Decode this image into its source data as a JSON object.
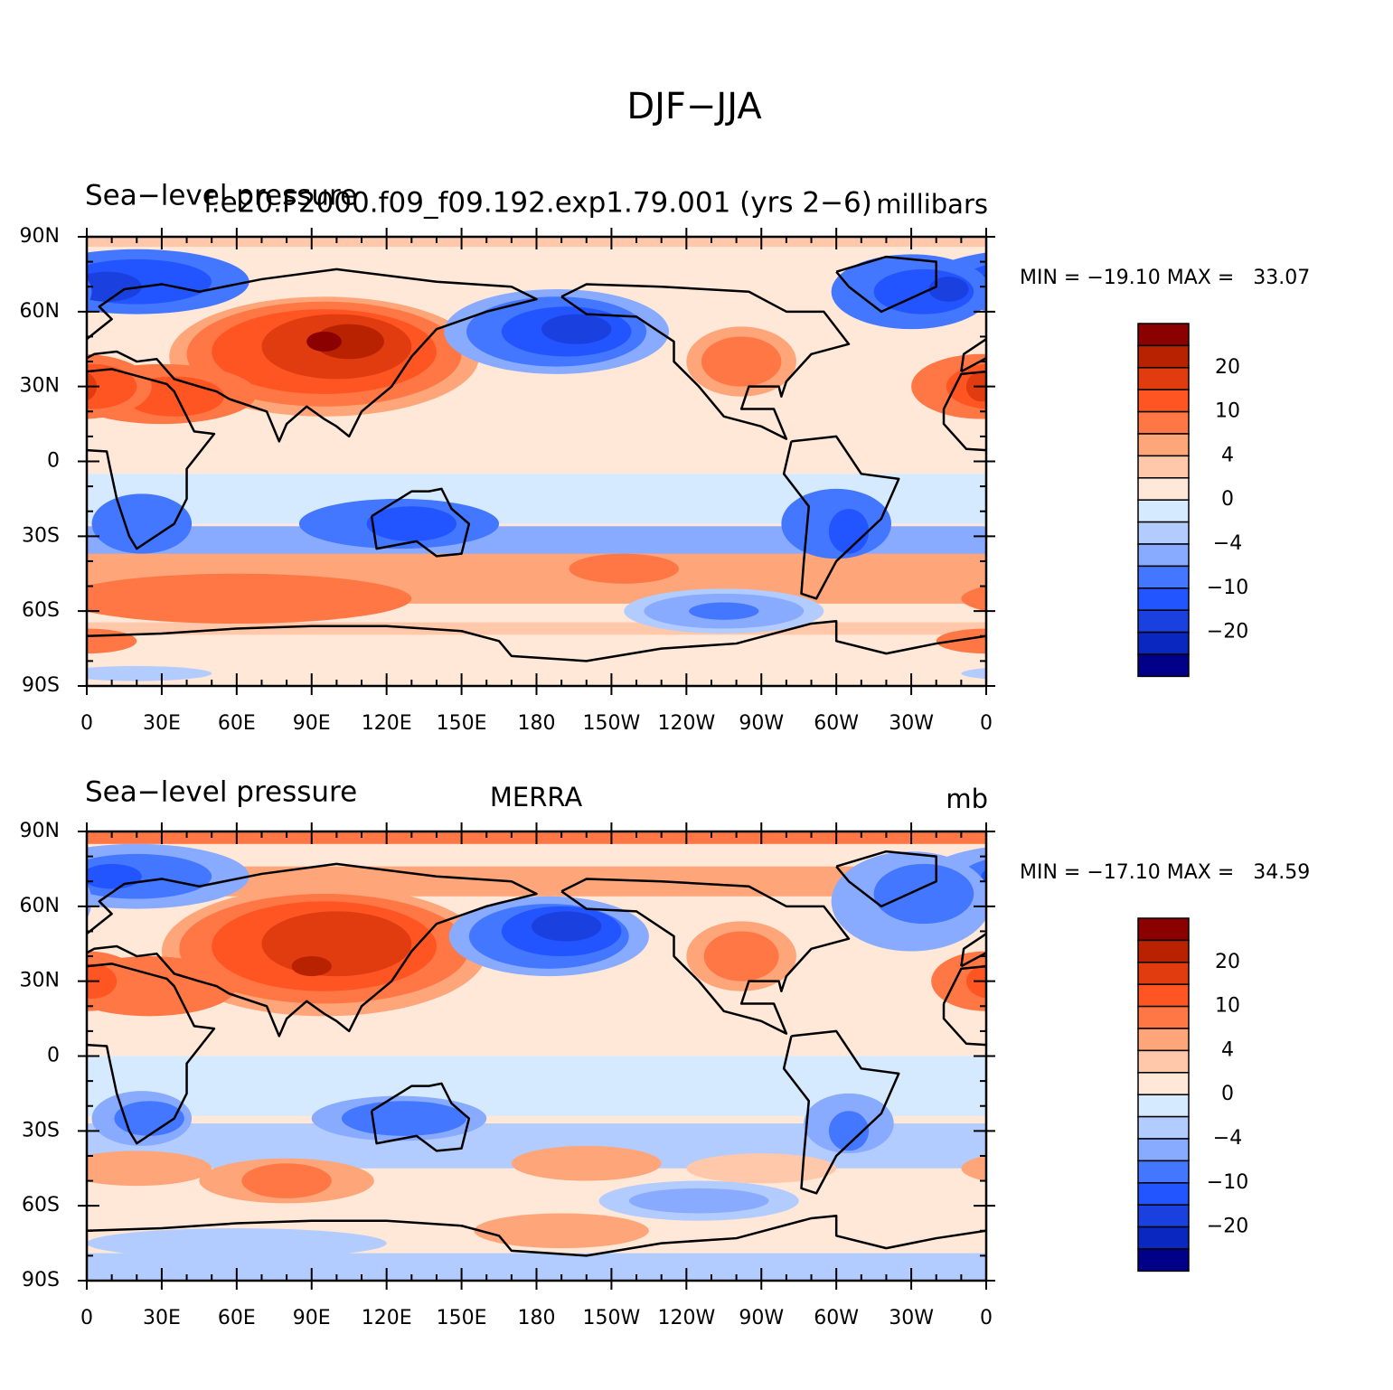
{
  "title": "DJF−JJA",
  "axes": {
    "y_labels": [
      "90N",
      "60N",
      "30N",
      "0",
      "30S",
      "60S",
      "90S"
    ],
    "x_labels": [
      "0",
      "30E",
      "60E",
      "90E",
      "120E",
      "150E",
      "180",
      "150W",
      "120W",
      "90W",
      "60W",
      "30W",
      "0"
    ]
  },
  "colorbar_colors": [
    "#8b0000",
    "#b82200",
    "#e03c10",
    "#ff5522",
    "#ff7744",
    "#ffa57a",
    "#ffc8aa",
    "#ffe8d8",
    "#d6eaff",
    "#b3ccff",
    "#88aaff",
    "#4477ff",
    "#2255ff",
    "#1a40e0",
    "#0a28c0",
    "#000088"
  ],
  "panels": [
    {
      "left_string": "Sea−level pressure",
      "center_string": "f.e20.F2000.f09_f09.192.exp1.79.001 (yrs 2−6)",
      "right_string": "millibars",
      "min_max": "MIN = −19.10 MAX =   33.07",
      "colorbar_labels": [
        "20",
        "10",
        "4",
        "0",
        "−4",
        "−10",
        "−20"
      ]
    },
    {
      "left_string": "Sea−level pressure",
      "center_string": "MERRA",
      "right_string": "mb",
      "min_max": "MIN = −17.10 MAX =   34.59",
      "colorbar_labels": [
        "20",
        "10",
        "4",
        "0",
        "−4",
        "−10",
        "−20"
      ]
    }
  ]
}
